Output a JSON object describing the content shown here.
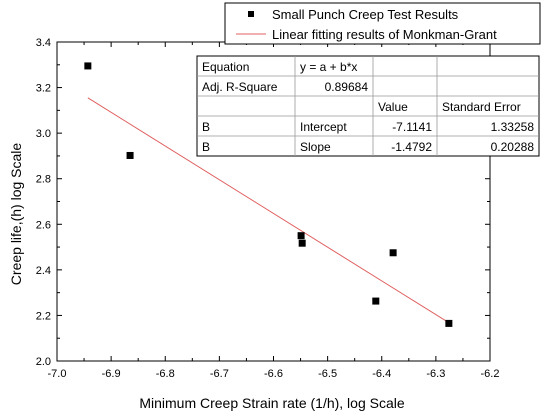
{
  "chart_data": {
    "type": "scatter",
    "xlabel": "Minimum Creep Strain rate (1/h), log Scale",
    "ylabel": "Creep life,(h) log Scale",
    "xlim": [
      -7.0,
      -6.2
    ],
    "ylim": [
      2.0,
      3.4
    ],
    "x_ticks": [
      "-7.0",
      "-6.9",
      "-6.8",
      "-6.7",
      "-6.6",
      "-6.5",
      "-6.4",
      "-6.3",
      "-6.2"
    ],
    "y_ticks": [
      "2.0",
      "2.2",
      "2.4",
      "2.6",
      "2.8",
      "3.0",
      "3.2",
      "3.4"
    ],
    "grid": false,
    "legend_position": "top-right",
    "series": [
      {
        "name": "Small Punch Creep Test Results",
        "kind": "scatter",
        "color": "#000000",
        "x": [
          -6.943,
          -6.865,
          -6.549,
          -6.547,
          -6.411,
          -6.379,
          -6.276
        ],
        "y": [
          3.295,
          2.902,
          2.55,
          2.517,
          2.263,
          2.475,
          2.165
        ]
      },
      {
        "name": "Linear fitting results of Monkman-Grant",
        "kind": "line",
        "color": "#e06060",
        "x": [
          -6.943,
          -6.276
        ],
        "y": [
          3.155,
          2.168
        ]
      }
    ],
    "stats_table": {
      "rows": [
        [
          "Equation",
          "y = a + b*x",
          "",
          ""
        ],
        [
          "Adj. R-Square",
          "0.89684",
          "",
          ""
        ],
        [
          "",
          "",
          "Value",
          "Standard Error"
        ],
        [
          "B",
          "Intercept",
          "-7.1141",
          "1.33258"
        ],
        [
          "B",
          "Slope",
          "-1.4792",
          "0.20288"
        ]
      ]
    }
  }
}
